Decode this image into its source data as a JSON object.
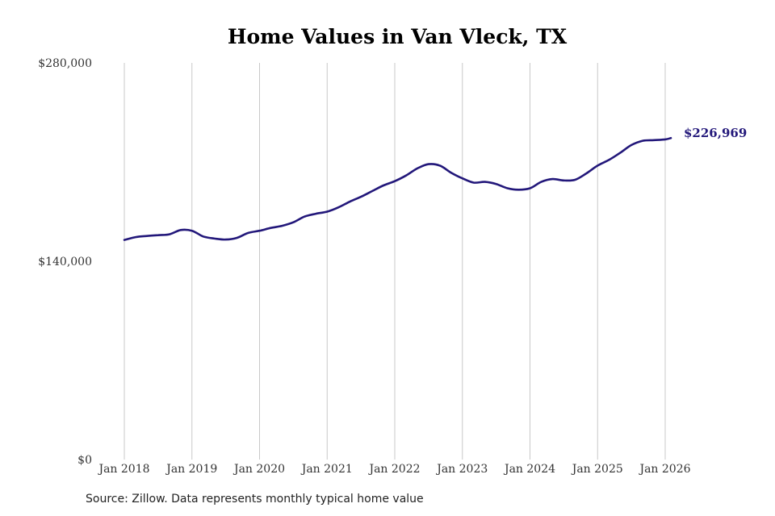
{
  "chart_data": {
    "type": "line",
    "title": "Home Values in Van Vleck, TX",
    "xlabel": "",
    "ylabel": "",
    "ylim": [
      0,
      280000
    ],
    "yticks": [
      {
        "value": 0,
        "label": "$0"
      },
      {
        "value": 140000,
        "label": "$140,000"
      },
      {
        "value": 280000,
        "label": "$280,000"
      }
    ],
    "xticks": [
      {
        "value": 2018,
        "label": "Jan 2018"
      },
      {
        "value": 2019,
        "label": "Jan 2019"
      },
      {
        "value": 2020,
        "label": "Jan 2020"
      },
      {
        "value": 2021,
        "label": "Jan 2021"
      },
      {
        "value": 2022,
        "label": "Jan 2022"
      },
      {
        "value": 2023,
        "label": "Jan 2023"
      },
      {
        "value": 2024,
        "label": "Jan 2024"
      },
      {
        "value": 2025,
        "label": "Jan 2025"
      },
      {
        "value": 2026,
        "label": "Jan 2026"
      }
    ],
    "grid": "vertical",
    "series": [
      {
        "color": "#22177a",
        "points": [
          [
            "2018-01",
            155000
          ],
          [
            "2018-03",
            157000
          ],
          [
            "2018-05",
            157800
          ],
          [
            "2018-07",
            158400
          ],
          [
            "2018-09",
            159000
          ],
          [
            "2018-11",
            162000
          ],
          [
            "2019-01",
            161500
          ],
          [
            "2019-03",
            157500
          ],
          [
            "2019-05",
            156000
          ],
          [
            "2019-07",
            155300
          ],
          [
            "2019-09",
            156500
          ],
          [
            "2019-11",
            160000
          ],
          [
            "2020-01",
            161500
          ],
          [
            "2020-03",
            163500
          ],
          [
            "2020-05",
            165000
          ],
          [
            "2020-07",
            167500
          ],
          [
            "2020-09",
            171500
          ],
          [
            "2020-11",
            173500
          ],
          [
            "2021-01",
            175000
          ],
          [
            "2021-03",
            178000
          ],
          [
            "2021-05",
            182000
          ],
          [
            "2021-07",
            185500
          ],
          [
            "2021-09",
            189500
          ],
          [
            "2021-11",
            193500
          ],
          [
            "2022-01",
            196500
          ],
          [
            "2022-03",
            200500
          ],
          [
            "2022-05",
            205500
          ],
          [
            "2022-07",
            208500
          ],
          [
            "2022-09",
            207500
          ],
          [
            "2022-11",
            202500
          ],
          [
            "2023-01",
            198500
          ],
          [
            "2023-03",
            195500
          ],
          [
            "2023-05",
            196000
          ],
          [
            "2023-07",
            194500
          ],
          [
            "2023-09",
            191500
          ],
          [
            "2023-11",
            190500
          ],
          [
            "2024-01",
            191500
          ],
          [
            "2024-03",
            196000
          ],
          [
            "2024-05",
            198000
          ],
          [
            "2024-07",
            197000
          ],
          [
            "2024-09",
            197500
          ],
          [
            "2024-11",
            202000
          ],
          [
            "2025-01",
            207500
          ],
          [
            "2025-03",
            211500
          ],
          [
            "2025-05",
            216500
          ],
          [
            "2025-07",
            222000
          ],
          [
            "2025-09",
            225000
          ],
          [
            "2025-11",
            225500
          ],
          [
            "2026-01",
            226000
          ],
          [
            "2026-02",
            226969
          ]
        ]
      }
    ],
    "end_label": "$226,969"
  },
  "source_note": "Source: Zillow. Data represents monthly typical home value"
}
